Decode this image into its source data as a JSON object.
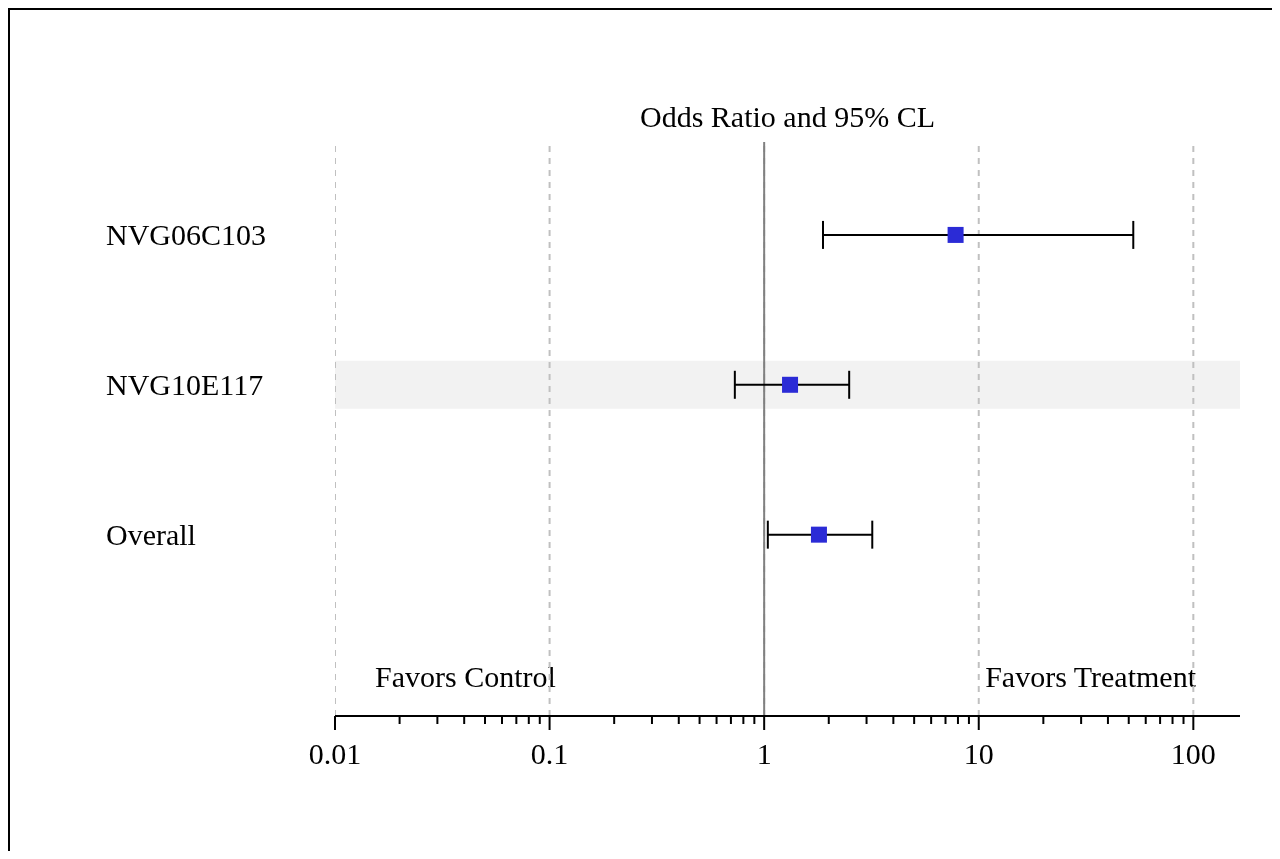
{
  "chart_data": {
    "type": "scatter",
    "title": "Odds Ratio and 95% CL",
    "orientation": "horizontal",
    "categories": [
      "NVG06C103",
      "NVG10E117",
      "Overall"
    ],
    "values": [
      7.8,
      1.32,
      1.8
    ],
    "errors": [
      [
        1.88,
        52.5
      ],
      [
        0.73,
        2.49
      ],
      [
        1.04,
        3.19
      ]
    ],
    "color": "#2b2bd6",
    "marker": "square",
    "log": "x",
    "grid": "x",
    "xlim": [
      0.01,
      165
    ],
    "xticks": [
      0.01,
      {
        "value": 0.02,
        "label": null
      },
      {
        "value": 0.03,
        "label": null
      },
      {
        "value": 0.04,
        "label": null
      },
      {
        "value": 0.05,
        "label": null
      },
      {
        "value": 0.06,
        "label": null
      },
      {
        "value": 0.07,
        "label": null
      },
      {
        "value": 0.08,
        "label": null
      },
      {
        "value": 0.09,
        "label": null
      },
      0.1,
      {
        "value": 0.2,
        "label": null
      },
      {
        "value": 0.3,
        "label": null
      },
      {
        "value": 0.4,
        "label": null
      },
      {
        "value": 0.5,
        "label": null
      },
      {
        "value": 0.6,
        "label": null
      },
      {
        "value": 0.7,
        "label": null
      },
      {
        "value": 0.8,
        "label": null
      },
      {
        "value": 0.9,
        "label": null
      },
      1,
      {
        "value": 2,
        "label": null
      },
      {
        "value": 3,
        "label": null
      },
      {
        "value": 4,
        "label": null
      },
      {
        "value": 5,
        "label": null
      },
      {
        "value": 6,
        "label": null
      },
      {
        "value": 7,
        "label": null
      },
      {
        "value": 8,
        "label": null
      },
      {
        "value": 9,
        "label": null
      },
      10,
      {
        "value": 20,
        "label": null
      },
      {
        "value": 30,
        "label": null
      },
      {
        "value": 40,
        "label": null
      },
      {
        "value": 50,
        "label": null
      },
      {
        "value": 60,
        "label": null
      },
      {
        "value": 70,
        "label": null
      },
      {
        "value": 80,
        "label": null
      },
      {
        "value": 90,
        "label": null
      },
      100
    ],
    "ref_lines": [
      {
        "axis": "x",
        "value": 1,
        "color": "#808080",
        "line_style": "solid"
      }
    ],
    "bands": [
      {
        "axis": "y",
        "from": "NVG10E117",
        "to": "NVG10E117",
        "color": "#f2f2f2"
      }
    ],
    "annotations": [
      "Favors Control",
      "Favors Treatment"
    ]
  }
}
